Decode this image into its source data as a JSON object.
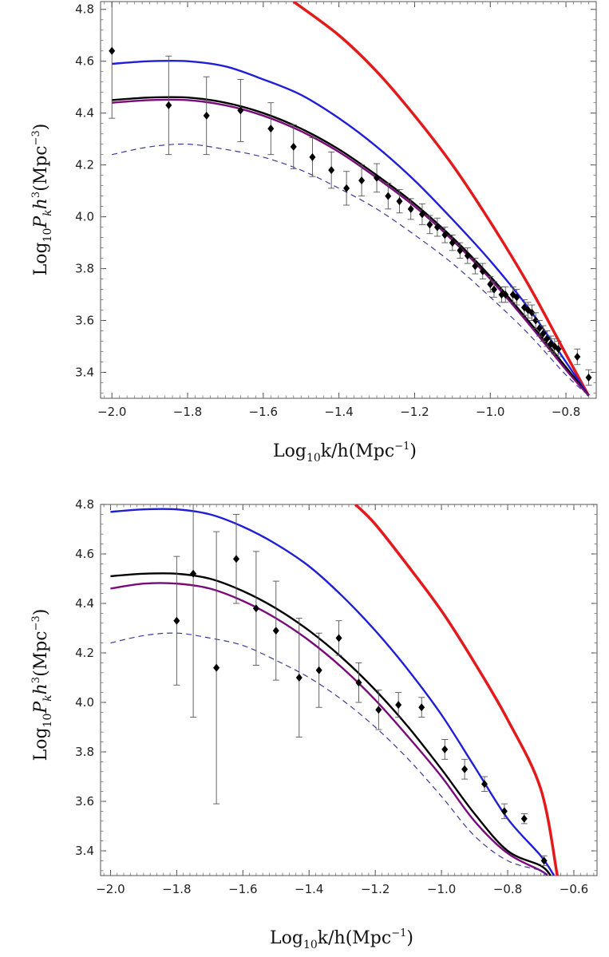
{
  "chart_data": [
    {
      "type": "line",
      "xlabel": "Log10k/h(Mpc-1)",
      "ylabel": "Log10Pkh3(Mpc-3)",
      "xlim": [
        -2.03,
        -0.72
      ],
      "ylim": [
        3.3,
        4.83
      ],
      "xticks": [
        "-2.0",
        "-1.8",
        "-1.6",
        "-1.4",
        "-1.2",
        "-1.0",
        "-0.8"
      ],
      "yticks": [
        "3.4",
        "3.6",
        "3.8",
        "4.0",
        "4.2",
        "4.4",
        "4.6",
        "4.8"
      ],
      "series": [
        {
          "color": "#e31a1c",
          "style": "thick",
          "x": [
            -1.52,
            -1.4,
            -1.3,
            -1.2,
            -1.1,
            -1.0,
            -0.9,
            -0.8,
            -0.74
          ],
          "y": [
            4.83,
            4.7,
            4.56,
            4.39,
            4.2,
            3.98,
            3.74,
            3.47,
            3.31
          ]
        },
        {
          "color": "#1f1fd6",
          "style": "solid",
          "x": [
            -2.0,
            -1.9,
            -1.8,
            -1.7,
            -1.6,
            -1.5,
            -1.4,
            -1.3,
            -1.2,
            -1.1,
            -1.0,
            -0.9,
            -0.8,
            -0.74
          ],
          "y": [
            4.59,
            4.6,
            4.6,
            4.58,
            4.53,
            4.47,
            4.38,
            4.27,
            4.14,
            3.99,
            3.83,
            3.65,
            3.44,
            3.31
          ]
        },
        {
          "color": "#000000",
          "style": "solid",
          "x": [
            -2.0,
            -1.9,
            -1.8,
            -1.7,
            -1.6,
            -1.5,
            -1.4,
            -1.3,
            -1.2,
            -1.1,
            -1.0,
            -0.9,
            -0.8,
            -0.74
          ],
          "y": [
            4.45,
            4.46,
            4.46,
            4.44,
            4.4,
            4.34,
            4.26,
            4.16,
            4.05,
            3.92,
            3.77,
            3.6,
            3.42,
            3.31
          ]
        },
        {
          "color": "#7b0a7b",
          "style": "solid",
          "x": [
            -2.0,
            -1.9,
            -1.8,
            -1.7,
            -1.6,
            -1.5,
            -1.4,
            -1.3,
            -1.2,
            -1.1,
            -1.0,
            -0.9,
            -0.8,
            -0.74
          ],
          "y": [
            4.44,
            4.45,
            4.45,
            4.43,
            4.39,
            4.33,
            4.25,
            4.15,
            4.04,
            3.91,
            3.76,
            3.59,
            3.41,
            3.31
          ]
        },
        {
          "color": "#3a3a9a",
          "style": "dashed",
          "x": [
            -2.0,
            -1.9,
            -1.8,
            -1.7,
            -1.6,
            -1.5,
            -1.4,
            -1.3,
            -1.2,
            -1.1,
            -1.0,
            -0.9,
            -0.8,
            -0.74
          ],
          "y": [
            4.24,
            4.27,
            4.28,
            4.26,
            4.23,
            4.18,
            4.11,
            4.03,
            3.93,
            3.82,
            3.69,
            3.55,
            3.39,
            3.31
          ]
        }
      ],
      "points": [
        {
          "x": -2.0,
          "y": 4.64,
          "err": 0.26
        },
        {
          "x": -1.85,
          "y": 4.43,
          "err": 0.19
        },
        {
          "x": -1.75,
          "y": 4.39,
          "err": 0.15
        },
        {
          "x": -1.66,
          "y": 4.41,
          "err": 0.12
        },
        {
          "x": -1.58,
          "y": 4.34,
          "err": 0.1
        },
        {
          "x": -1.52,
          "y": 4.27,
          "err": 0.085
        },
        {
          "x": -1.47,
          "y": 4.23,
          "err": 0.075
        },
        {
          "x": -1.42,
          "y": 4.18,
          "err": 0.07
        },
        {
          "x": -1.38,
          "y": 4.11,
          "err": 0.065
        },
        {
          "x": -1.34,
          "y": 4.14,
          "err": 0.06
        },
        {
          "x": -1.3,
          "y": 4.15,
          "err": 0.055
        },
        {
          "x": -1.27,
          "y": 4.08,
          "err": 0.05
        },
        {
          "x": -1.24,
          "y": 4.06,
          "err": 0.045
        },
        {
          "x": -1.21,
          "y": 4.03,
          "err": 0.04
        },
        {
          "x": -1.18,
          "y": 4.01,
          "err": 0.04
        },
        {
          "x": -1.16,
          "y": 3.97,
          "err": 0.035
        },
        {
          "x": -1.14,
          "y": 3.96,
          "err": 0.035
        },
        {
          "x": -1.12,
          "y": 3.93,
          "err": 0.03
        },
        {
          "x": -1.1,
          "y": 3.9,
          "err": 0.03
        },
        {
          "x": -1.08,
          "y": 3.87,
          "err": 0.03
        },
        {
          "x": -1.06,
          "y": 3.85,
          "err": 0.03
        },
        {
          "x": -1.04,
          "y": 3.81,
          "err": 0.03
        },
        {
          "x": -1.02,
          "y": 3.79,
          "err": 0.03
        },
        {
          "x": -1.0,
          "y": 3.74,
          "err": 0.03
        },
        {
          "x": -0.99,
          "y": 3.72,
          "err": 0.03
        },
        {
          "x": -0.97,
          "y": 3.7,
          "err": 0.03
        },
        {
          "x": -0.96,
          "y": 3.7,
          "err": 0.03
        },
        {
          "x": -0.94,
          "y": 3.7,
          "err": 0.03
        },
        {
          "x": -0.93,
          "y": 3.69,
          "err": 0.03
        },
        {
          "x": -0.91,
          "y": 3.65,
          "err": 0.03
        },
        {
          "x": -0.9,
          "y": 3.64,
          "err": 0.03
        },
        {
          "x": -0.89,
          "y": 3.63,
          "err": 0.03
        },
        {
          "x": -0.88,
          "y": 3.6,
          "err": 0.03
        },
        {
          "x": -0.87,
          "y": 3.57,
          "err": 0.03
        },
        {
          "x": -0.86,
          "y": 3.55,
          "err": 0.03
        },
        {
          "x": -0.85,
          "y": 3.53,
          "err": 0.03
        },
        {
          "x": -0.84,
          "y": 3.51,
          "err": 0.03
        },
        {
          "x": -0.83,
          "y": 3.5,
          "err": 0.03
        },
        {
          "x": -0.82,
          "y": 3.49,
          "err": 0.03
        },
        {
          "x": -0.77,
          "y": 3.46,
          "err": 0.03
        },
        {
          "x": -0.74,
          "y": 3.38,
          "err": 0.03
        }
      ]
    },
    {
      "type": "line",
      "xlabel": "Log10k/h(Mpc-1)",
      "ylabel": "Log10Pkh3(Mpc-3)",
      "xlim": [
        -2.03,
        -0.53
      ],
      "ylim": [
        3.3,
        4.8
      ],
      "xticks": [
        "-2.0",
        "-1.8",
        "-1.6",
        "-1.4",
        "-1.2",
        "-1.0",
        "-0.8",
        "-0.6"
      ],
      "yticks": [
        "3.4",
        "3.6",
        "3.8",
        "4.0",
        "4.2",
        "4.4",
        "4.6",
        "4.8"
      ],
      "series": [
        {
          "color": "#e31a1c",
          "style": "thick",
          "x": [
            -1.26,
            -1.2,
            -1.1,
            -1.0,
            -0.9,
            -0.8,
            -0.7,
            -0.65
          ],
          "y": [
            4.8,
            4.72,
            4.55,
            4.37,
            4.16,
            3.93,
            3.65,
            3.3
          ]
        },
        {
          "color": "#1f1fd6",
          "style": "solid",
          "x": [
            -2.0,
            -1.9,
            -1.8,
            -1.7,
            -1.6,
            -1.5,
            -1.4,
            -1.3,
            -1.2,
            -1.1,
            -1.0,
            -0.9,
            -0.8,
            -0.7,
            -0.66
          ],
          "y": [
            4.77,
            4.78,
            4.78,
            4.76,
            4.71,
            4.64,
            4.55,
            4.43,
            4.29,
            4.13,
            3.95,
            3.74,
            3.53,
            3.38,
            3.3
          ]
        },
        {
          "color": "#000000",
          "style": "solid",
          "x": [
            -2.0,
            -1.9,
            -1.8,
            -1.7,
            -1.6,
            -1.5,
            -1.4,
            -1.3,
            -1.2,
            -1.1,
            -1.0,
            -0.9,
            -0.8,
            -0.7,
            -0.67
          ],
          "y": [
            4.51,
            4.52,
            4.52,
            4.5,
            4.45,
            4.38,
            4.29,
            4.18,
            4.05,
            3.9,
            3.73,
            3.55,
            3.4,
            3.34,
            3.3
          ]
        },
        {
          "color": "#7b0a7b",
          "style": "solid",
          "x": [
            -2.0,
            -1.9,
            -1.8,
            -1.7,
            -1.6,
            -1.5,
            -1.4,
            -1.3,
            -1.2,
            -1.1,
            -1.0,
            -0.9,
            -0.8,
            -0.7,
            -0.68
          ],
          "y": [
            4.46,
            4.48,
            4.48,
            4.46,
            4.41,
            4.34,
            4.25,
            4.14,
            4.01,
            3.86,
            3.7,
            3.52,
            3.39,
            3.32,
            3.3
          ]
        },
        {
          "color": "#3a3a9a",
          "style": "dashed",
          "x": [
            -2.0,
            -1.9,
            -1.8,
            -1.7,
            -1.6,
            -1.5,
            -1.4,
            -1.3,
            -1.2,
            -1.1,
            -1.0,
            -0.9,
            -0.8,
            -0.7,
            -0.69
          ],
          "y": [
            4.24,
            4.27,
            4.28,
            4.26,
            4.23,
            4.17,
            4.1,
            4.01,
            3.9,
            3.77,
            3.62,
            3.46,
            3.36,
            3.32,
            3.3
          ]
        }
      ],
      "points": [
        {
          "x": -1.8,
          "y": 4.33,
          "err": 0.26
        },
        {
          "x": -1.75,
          "y": 4.52,
          "err": 0.58
        },
        {
          "x": -1.68,
          "y": 4.14,
          "err": 0.55
        },
        {
          "x": -1.62,
          "y": 4.58,
          "err": 0.18
        },
        {
          "x": -1.56,
          "y": 4.38,
          "err": 0.23
        },
        {
          "x": -1.5,
          "y": 4.29,
          "err": 0.2
        },
        {
          "x": -1.43,
          "y": 4.1,
          "err": 0.24
        },
        {
          "x": -1.37,
          "y": 4.13,
          "err": 0.15
        },
        {
          "x": -1.31,
          "y": 4.26,
          "err": 0.07
        },
        {
          "x": -1.25,
          "y": 4.08,
          "err": 0.08
        },
        {
          "x": -1.19,
          "y": 3.97,
          "err": 0.08
        },
        {
          "x": -1.13,
          "y": 3.99,
          "err": 0.05
        },
        {
          "x": -1.06,
          "y": 3.98,
          "err": 0.04
        },
        {
          "x": -0.99,
          "y": 3.81,
          "err": 0.04
        },
        {
          "x": -0.93,
          "y": 3.73,
          "err": 0.04
        },
        {
          "x": -0.87,
          "y": 3.67,
          "err": 0.03
        },
        {
          "x": -0.81,
          "y": 3.56,
          "err": 0.03
        },
        {
          "x": -0.75,
          "y": 3.53,
          "err": 0.02
        },
        {
          "x": -0.69,
          "y": 3.36,
          "err": 0.02
        }
      ]
    }
  ]
}
